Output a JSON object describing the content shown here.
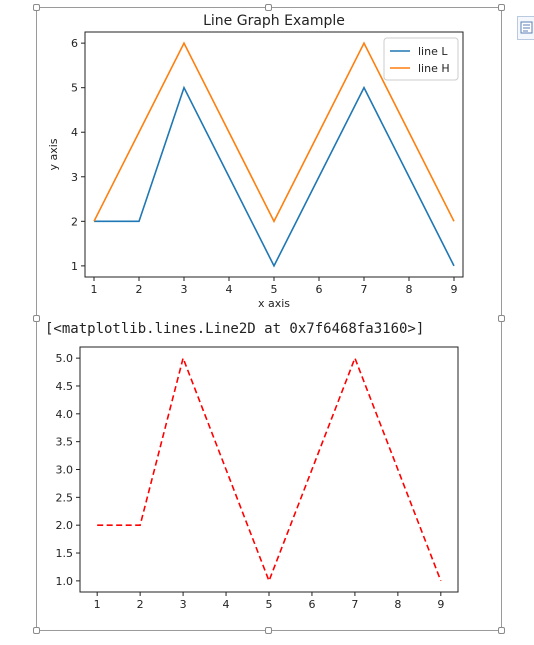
{
  "chart_data": [
    {
      "type": "line",
      "title": "Line Graph Example",
      "xlabel": "x axis",
      "ylabel": "y axis",
      "x": [
        1,
        2,
        3,
        4,
        5,
        6,
        7,
        8,
        9
      ],
      "xticks": [
        "1",
        "2",
        "3",
        "4",
        "5",
        "6",
        "7",
        "8",
        "9"
      ],
      "yticks": [
        "1",
        "2",
        "3",
        "4",
        "5",
        "6"
      ],
      "xlim": [
        0.8,
        9.2
      ],
      "ylim": [
        0.75,
        6.25
      ],
      "series": [
        {
          "name": "line L",
          "color": "#1f77b4",
          "style": "solid",
          "values": [
            2,
            2,
            5,
            3,
            1,
            3,
            5,
            3,
            1
          ]
        },
        {
          "name": "line H",
          "color": "#ff7f0e",
          "style": "solid",
          "values": [
            2,
            4,
            6,
            4,
            2,
            4,
            6,
            4,
            2
          ]
        }
      ],
      "legend": "top-right",
      "grid": false
    },
    {
      "type": "line",
      "title": "",
      "xlabel": "",
      "ylabel": "",
      "x": [
        1,
        2,
        3,
        4,
        5,
        6,
        7,
        8,
        9
      ],
      "xticks": [
        "1",
        "2",
        "3",
        "4",
        "5",
        "6",
        "7",
        "8",
        "9"
      ],
      "yticks": [
        "1.0",
        "1.5",
        "2.0",
        "2.5",
        "3.0",
        "3.5",
        "4.0",
        "4.5",
        "5.0"
      ],
      "xlim": [
        0.6,
        9.4
      ],
      "ylim": [
        0.8,
        5.2
      ],
      "series": [
        {
          "color": "#ff0000",
          "style": "dashed",
          "values": [
            2,
            2,
            5,
            3,
            1,
            3,
            5,
            3,
            1
          ]
        }
      ],
      "grid": false
    }
  ],
  "output": {
    "text": "[<matplotlib.lines.Line2D at 0x7f6468fa3160>]"
  },
  "icons": {
    "layout_options": "layout-options-icon"
  }
}
